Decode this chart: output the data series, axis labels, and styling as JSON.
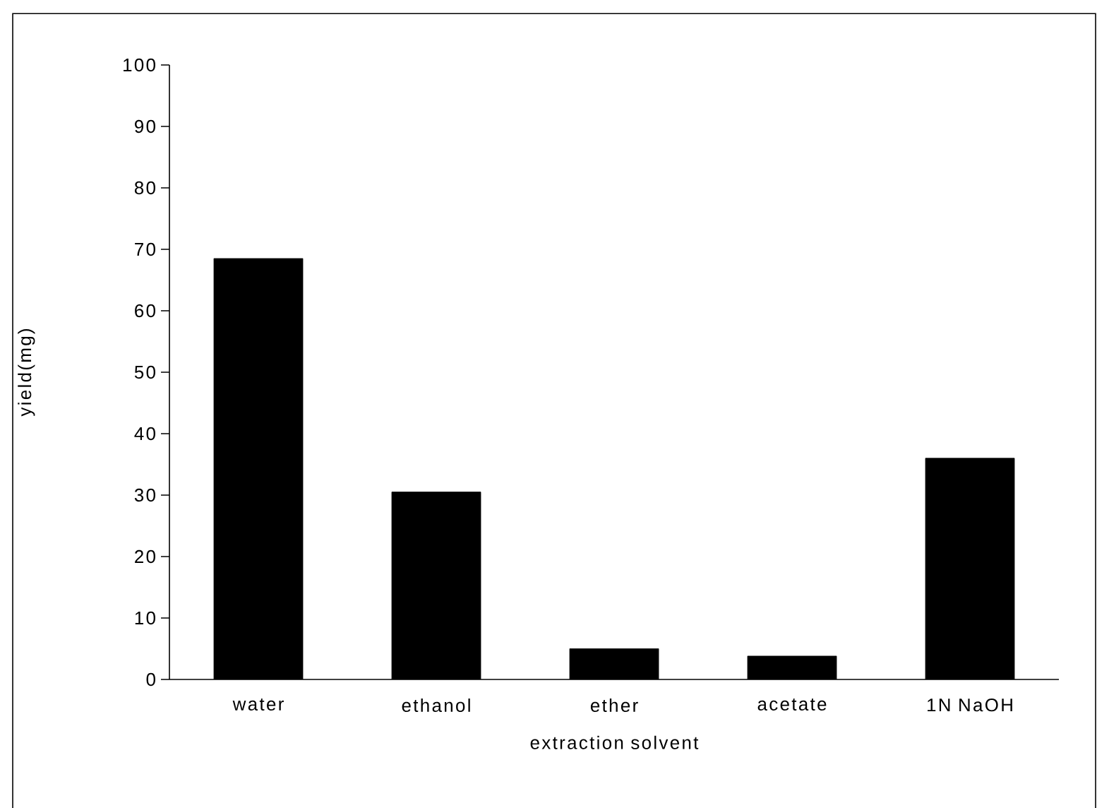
{
  "chart_data": {
    "type": "bar",
    "xlabel": "extraction solvent",
    "ylabel": "yield(mg)",
    "categories": [
      "water",
      "ethanol",
      "ether",
      "acetate",
      "1N NaOH"
    ],
    "values": [
      68.5,
      30.5,
      5,
      3.8,
      36
    ],
    "color": "#000000",
    "ylim": [
      0,
      100
    ],
    "yticks": [
      0,
      10,
      20,
      30,
      40,
      50,
      60,
      70,
      80,
      90,
      100
    ]
  }
}
